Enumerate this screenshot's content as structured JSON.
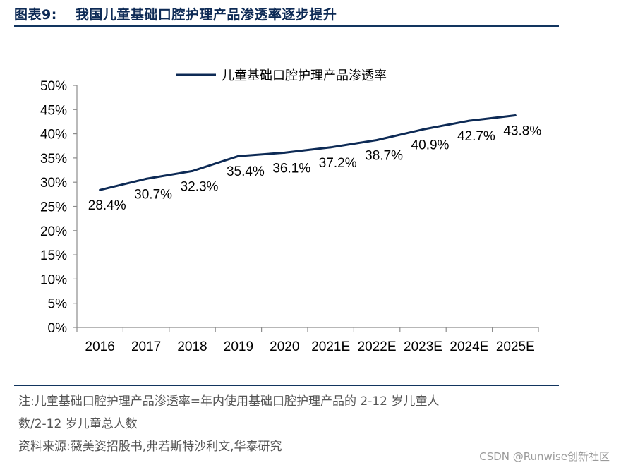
{
  "figure": {
    "caption_number": "图表9:",
    "caption_title": "我国儿童基础口腔护理产品渗透率逐步提升"
  },
  "chart_data": {
    "type": "line",
    "categories": [
      "2016",
      "2017",
      "2018",
      "2019",
      "2020",
      "2021E",
      "2022E",
      "2023E",
      "2024E",
      "2025E"
    ],
    "series": [
      {
        "name": "儿童基础口腔护理产品渗透率",
        "values": [
          28.4,
          30.7,
          32.3,
          35.4,
          36.1,
          37.2,
          38.7,
          40.9,
          42.7,
          43.8
        ],
        "color": "#0d2a55"
      }
    ],
    "data_labels": [
      "28.4%",
      "30.7%",
      "32.3%",
      "35.4%",
      "36.1%",
      "37.2%",
      "38.7%",
      "40.9%",
      "42.7%",
      "43.8%"
    ],
    "yticks": [
      "0%",
      "5%",
      "10%",
      "15%",
      "20%",
      "25%",
      "30%",
      "35%",
      "40%",
      "45%",
      "50%"
    ],
    "ylim": [
      0,
      50
    ],
    "ytick_step": 5,
    "title": "",
    "xlabel": "",
    "ylabel": "",
    "grid": false,
    "legend_position": "top"
  },
  "notes": {
    "line1": "注:儿童基础口腔护理产品渗透率=年内使用基础口腔护理产品的 2-12 岁儿童人",
    "line2": "数/2-12 岁儿童总人数",
    "source": "资料来源:薇美姿招股书,弗若斯特沙利文,华泰研究"
  },
  "watermark": "CSDN @Runwise创新社区"
}
